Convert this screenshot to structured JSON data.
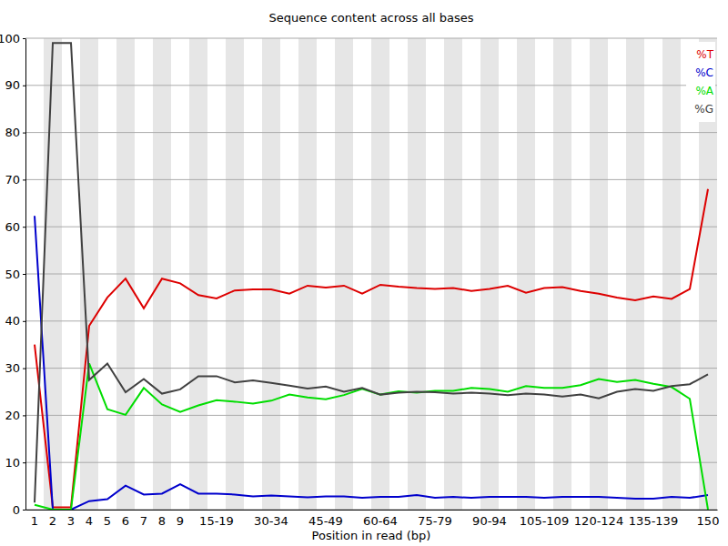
{
  "chart_data": {
    "type": "line",
    "title": "Sequence content across all bases",
    "x_label": "Position in read (bp)",
    "categories": [
      "1",
      "2",
      "3",
      "4",
      "5",
      "6",
      "7",
      "8",
      "9",
      null,
      "15-19",
      null,
      null,
      "30-34",
      null,
      null,
      "45-49",
      null,
      null,
      "60-64",
      null,
      null,
      "75-79",
      null,
      null,
      "90-94",
      null,
      null,
      "105-109",
      null,
      null,
      "120-124",
      null,
      null,
      "135-139",
      null,
      null,
      "150"
    ],
    "ylim": [
      0,
      100
    ],
    "yticks": [
      0,
      10,
      20,
      30,
      40,
      50,
      60,
      70,
      80,
      90,
      100
    ],
    "grid": true,
    "legend": "top-right",
    "series": [
      {
        "name": "%T",
        "color": "#dd0000",
        "values": [
          35,
          0.5,
          0.5,
          39,
          45,
          49,
          42.7,
          49,
          48,
          45.5,
          44.8,
          46.5,
          46.7,
          46.7,
          45.8,
          47.5,
          47.1,
          47.5,
          45.8,
          47.7,
          47.3,
          47,
          46.8,
          47,
          46.4,
          46.8,
          47.5,
          46,
          47,
          47.2,
          46.4,
          45.8,
          45,
          44.4,
          45.2,
          44.7,
          46.8,
          68
        ]
      },
      {
        "name": "%C",
        "color": "#0000cc",
        "values": [
          62.3,
          0,
          0,
          1.8,
          2.2,
          5.1,
          3.2,
          3.4,
          5.4,
          3.4,
          3.4,
          3.2,
          2.8,
          3,
          2.8,
          2.6,
          2.8,
          2.8,
          2.5,
          2.7,
          2.7,
          3.1,
          2.5,
          2.7,
          2.5,
          2.7,
          2.7,
          2.7,
          2.5,
          2.7,
          2.7,
          2.7,
          2.5,
          2.3,
          2.3,
          2.7,
          2.5,
          3.1
        ]
      },
      {
        "name": "%A",
        "color": "#00dd00",
        "values": [
          1,
          0,
          0,
          31,
          21.3,
          20.1,
          25.8,
          22.3,
          20.7,
          22.1,
          23.2,
          22.9,
          22.5,
          23.1,
          24.4,
          23.8,
          23.4,
          24.3,
          25.6,
          24.4,
          25.1,
          24.8,
          25.2,
          25.2,
          25.8,
          25.6,
          25,
          26.2,
          25.8,
          25.8,
          26.4,
          27.7,
          27.1,
          27.5,
          26.7,
          26,
          23.5,
          0
        ]
      },
      {
        "name": "%G",
        "color": "#404040",
        "values": [
          1.5,
          99,
          99,
          27.5,
          31,
          24.9,
          27.7,
          24.6,
          25.5,
          28.3,
          28.3,
          27,
          27.4,
          26.9,
          26.3,
          25.7,
          26.1,
          25,
          25.8,
          24.4,
          24.8,
          25,
          24.9,
          24.6,
          24.8,
          24.6,
          24.3,
          24.6,
          24.4,
          24,
          24.4,
          23.6,
          25,
          25.6,
          25.2,
          26.2,
          26.6,
          28.7
        ]
      }
    ]
  }
}
